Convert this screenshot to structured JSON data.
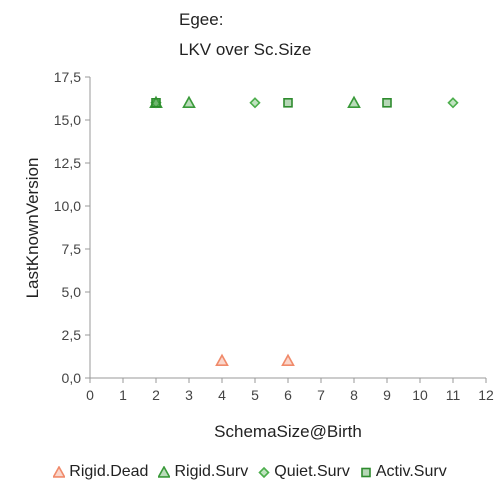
{
  "chart_data": {
    "type": "scatter",
    "title_lines": [
      "Egee:",
      "LKV over Sc.Size"
    ],
    "xlabel": "SchemaSize@Birth",
    "ylabel": "LastKnownVersion",
    "xlim": [
      0,
      12
    ],
    "ylim": [
      0,
      17.5
    ],
    "x_ticks": [
      "0",
      "1",
      "2",
      "3",
      "4",
      "5",
      "6",
      "7",
      "8",
      "9",
      "10",
      "11",
      "12"
    ],
    "y_ticks": [
      "0,0",
      "2,5",
      "5,0",
      "7,5",
      "10,0",
      "12,5",
      "15,0",
      "17,5"
    ],
    "grid": false,
    "legend_position": "bottom",
    "series": [
      {
        "name": "Rigid.Dead",
        "marker": "triangle",
        "color": "#f08a6a",
        "points": [
          [
            4,
            1
          ],
          [
            6,
            1
          ]
        ]
      },
      {
        "name": "Rigid.Surv",
        "marker": "triangle",
        "color": "#3a9a3a",
        "points": [
          [
            2,
            16
          ],
          [
            3,
            16
          ],
          [
            8,
            16
          ]
        ]
      },
      {
        "name": "Quiet.Surv",
        "marker": "diamond",
        "color": "#4cae4c",
        "points": [
          [
            2,
            16
          ],
          [
            5,
            16
          ],
          [
            11,
            16
          ]
        ]
      },
      {
        "name": "Activ.Surv",
        "marker": "square",
        "color": "#2e8b2e",
        "points": [
          [
            2,
            16
          ],
          [
            6,
            16
          ],
          [
            9,
            16
          ]
        ]
      }
    ]
  }
}
